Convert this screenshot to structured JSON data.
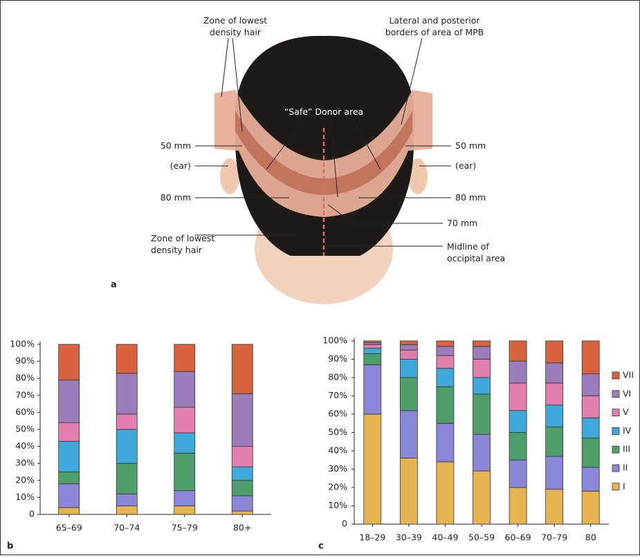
{
  "illustration": {
    "labels": [
      [
        "Zone of lowest",
        "density hair"
      ],
      [
        "Lateral and posterior",
        "borders of area of MPB"
      ],
      [
        "“Safe” Donor area"
      ],
      [
        "50 mm"
      ],
      [
        "(ear)"
      ],
      [
        "80 mm"
      ],
      [
        "Zone of lowest",
        "density hair"
      ],
      [
        "50 mm"
      ],
      [
        "(ear)"
      ],
      [
        "80 mm"
      ],
      [
        "70 mm"
      ],
      [
        "Midline of",
        "occipital area"
      ]
    ],
    "panel_label": "a"
  },
  "chart_data": [
    {
      "type": "bar",
      "stacked": true,
      "panel_label": "b",
      "categories": [
        "65–69",
        "70–74",
        "75–79",
        "80+"
      ],
      "ylim": [
        0,
        100
      ],
      "yticks": [
        0,
        {
          "value": 10,
          "label": "10%"
        },
        {
          "value": 20,
          "label": "20%"
        },
        {
          "value": 30,
          "label": "30%"
        },
        {
          "value": 40,
          "label": "40%"
        },
        {
          "value": 50,
          "label": "50%"
        },
        {
          "value": 60,
          "label": "60%"
        },
        {
          "value": 70,
          "label": "70%"
        },
        {
          "value": 80,
          "label": "80%"
        },
        {
          "value": 90,
          "label": "90%"
        },
        {
          "value": 100,
          "label": "100%"
        }
      ],
      "series": [
        {
          "color": "#e6b551",
          "values": [
            4,
            5,
            5,
            2
          ]
        },
        {
          "color": "#8a86d8",
          "values": [
            14,
            7,
            9,
            9
          ]
        },
        {
          "color": "#4f9f6b",
          "values": [
            7,
            18,
            22,
            9
          ]
        },
        {
          "color": "#3fa9da",
          "values": [
            18,
            20,
            12,
            8
          ]
        },
        {
          "color": "#e27fac",
          "values": [
            11,
            9,
            15,
            12
          ]
        },
        {
          "color": "#9c7cbb",
          "values": [
            25,
            24,
            21,
            31
          ]
        },
        {
          "color": "#d9633c",
          "values": [
            21,
            17,
            16,
            29
          ]
        }
      ]
    },
    {
      "type": "bar",
      "stacked": true,
      "panel_label": "c",
      "categories": [
        "18–29",
        "30–39",
        "40–49",
        "50–59",
        "60–69",
        "70–79",
        "80"
      ],
      "ylim": [
        0,
        100
      ],
      "yticks": [
        0,
        {
          "value": 10,
          "label": "10%"
        },
        {
          "value": 20,
          "label": "20%"
        },
        {
          "value": 30,
          "label": "30%"
        },
        {
          "value": 40,
          "label": "40%"
        },
        {
          "value": 50,
          "label": "50%"
        },
        {
          "value": 60,
          "label": "60%"
        },
        {
          "value": 70,
          "label": "70%"
        },
        {
          "value": 80,
          "label": "80%"
        },
        {
          "value": 90,
          "label": "90%"
        },
        {
          "value": 100,
          "label": "100%"
        }
      ],
      "legend": "right",
      "series": [
        {
          "name": "I",
          "color": "#e6b551",
          "values": [
            60,
            36,
            34,
            29,
            20,
            19,
            18
          ]
        },
        {
          "name": "II",
          "color": "#8a86d8",
          "values": [
            27,
            26,
            21,
            20,
            15,
            18,
            13
          ]
        },
        {
          "name": "III",
          "color": "#4f9f6b",
          "values": [
            6,
            18,
            20,
            22,
            15,
            16,
            16
          ]
        },
        {
          "name": "IV",
          "color": "#3fa9da",
          "values": [
            3,
            10,
            10,
            9,
            12,
            12,
            11
          ]
        },
        {
          "name": "V",
          "color": "#e27fac",
          "values": [
            2,
            5,
            7,
            10,
            15,
            12,
            12
          ]
        },
        {
          "name": "VI",
          "color": "#9c7cbb",
          "values": [
            1,
            3,
            5,
            7,
            12,
            11,
            12
          ]
        },
        {
          "name": "VII",
          "color": "#d9633c",
          "values": [
            1,
            2,
            3,
            3,
            11,
            12,
            18
          ]
        }
      ]
    }
  ]
}
